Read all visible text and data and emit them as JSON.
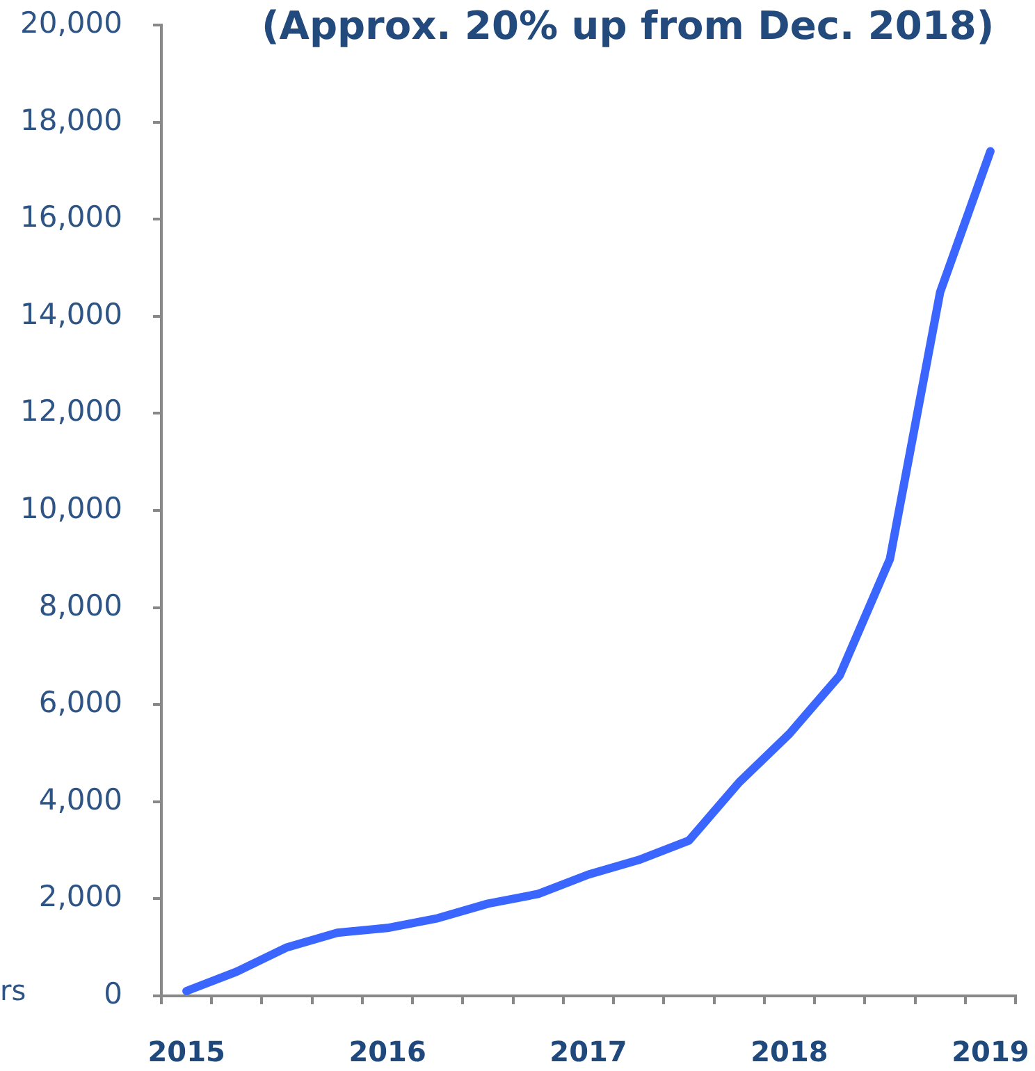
{
  "chart_data": {
    "type": "line",
    "title": "(Approx. 20% up from Dec. 2018)",
    "annotations": [
      "rs"
    ],
    "categories": [
      "2015",
      null,
      null,
      null,
      "2016",
      null,
      null,
      null,
      "2017",
      null,
      null,
      null,
      "2018",
      null,
      null,
      null,
      "2019"
    ],
    "series": [
      {
        "color": "#3a66ff",
        "values": [
          100,
          500,
          1000,
          1300,
          1400,
          1600,
          1900,
          2100,
          2500,
          2800,
          3200,
          4400,
          5400,
          6600,
          9000,
          14500,
          17400
        ]
      }
    ],
    "ylim": [
      0,
      20000
    ],
    "yticks": [
      {
        "value": 0,
        "label": "0"
      },
      {
        "value": 2000,
        "label": "2,000"
      },
      {
        "value": 4000,
        "label": "4,000"
      },
      {
        "value": 6000,
        "label": "6,000"
      },
      {
        "value": 8000,
        "label": "8,000"
      },
      {
        "value": 10000,
        "label": "10,000"
      },
      {
        "value": 12000,
        "label": "12,000"
      },
      {
        "value": 14000,
        "label": "14,000"
      },
      {
        "value": 16000,
        "label": "16,000"
      },
      {
        "value": 18000,
        "label": "18,000"
      },
      {
        "value": 20000,
        "label": "20,000"
      }
    ]
  }
}
